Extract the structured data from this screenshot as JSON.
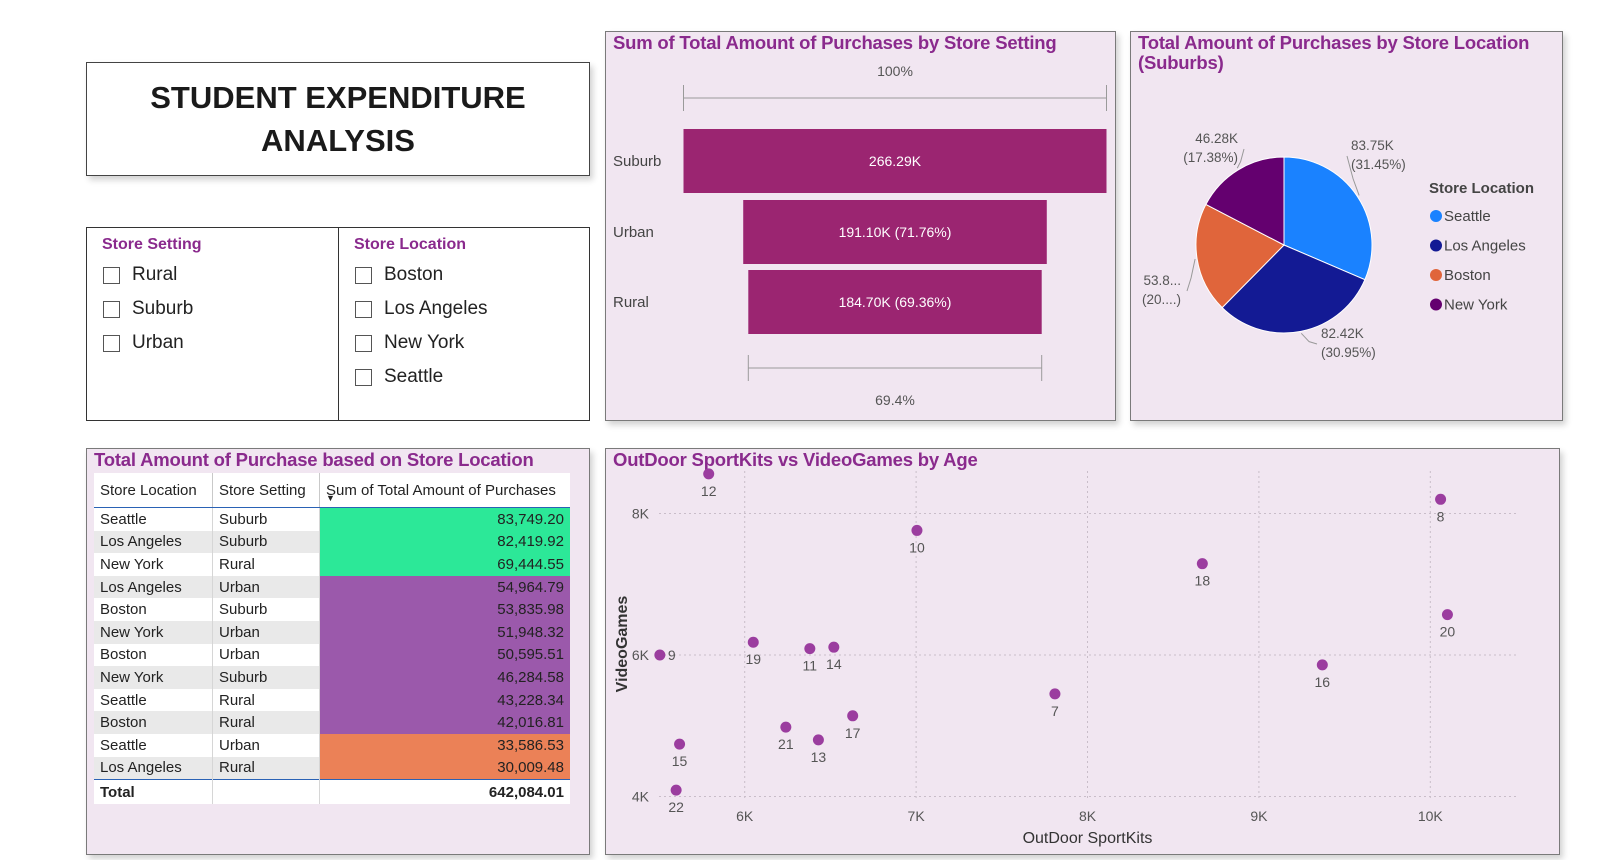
{
  "dashboard_title": "STUDENT EXPENDITURE ANALYSIS",
  "slicers": {
    "store_setting": {
      "title": "Store Setting",
      "options": [
        "Rural",
        "Suburb",
        "Urban"
      ]
    },
    "store_location": {
      "title": "Store Location",
      "options": [
        "Boston",
        "Los Angeles",
        "New York",
        "Seattle"
      ]
    }
  },
  "chart_data": [
    {
      "type": "funnel",
      "title": "Sum of Total Amount of Purchases by Store Setting",
      "categories": [
        "Suburb",
        "Urban",
        "Rural"
      ],
      "values": [
        266290,
        191100,
        184700
      ],
      "value_labels": [
        "266.29K",
        "191.10K (71.76%)",
        "184.70K (69.36%)"
      ],
      "top_percent": "100%",
      "bottom_percent": "69.4%",
      "bar_color": "#9b2571"
    },
    {
      "type": "pie",
      "title": "Total Amount of Purchases by Store Location (Suburbs)",
      "legend_title": "Store Location",
      "legend_placement": "right",
      "slices": [
        {
          "name": "Seattle",
          "value": 83750,
          "label": "83.75K",
          "pct": "(31.45%)",
          "color": "#1a82ff"
        },
        {
          "name": "Los Angeles",
          "value": 82420,
          "label": "82.42K",
          "pct": "(30.95%)",
          "color": "#131a94"
        },
        {
          "name": "Boston",
          "value": 53840,
          "label": "53.8...",
          "pct": "(20....)",
          "color": "#e0653b"
        },
        {
          "name": "New York",
          "value": 46280,
          "label": "46.28K",
          "pct": "(17.38%)",
          "color": "#64006f"
        }
      ]
    },
    {
      "type": "table",
      "title": "Total Amount of Purchase based on Store Location",
      "columns": [
        "Store Location",
        "Store Setting",
        "Sum of Total Amount of Purchases"
      ],
      "sort_indicator": "▼",
      "rows": [
        {
          "location": "Seattle",
          "setting": "Suburb",
          "amount": "83,749.20",
          "color": "#2ce898"
        },
        {
          "location": "Los Angeles",
          "setting": "Suburb",
          "amount": "82,419.92",
          "color": "#2ce898"
        },
        {
          "location": "New York",
          "setting": "Rural",
          "amount": "69,444.55",
          "color": "#2ce898"
        },
        {
          "location": "Los Angeles",
          "setting": "Urban",
          "amount": "54,964.79",
          "color": "#9b59ab"
        },
        {
          "location": "Boston",
          "setting": "Suburb",
          "amount": "53,835.98",
          "color": "#9b59ab"
        },
        {
          "location": "New York",
          "setting": "Urban",
          "amount": "51,948.32",
          "color": "#9b59ab"
        },
        {
          "location": "Boston",
          "setting": "Urban",
          "amount": "50,595.51",
          "color": "#9b59ab"
        },
        {
          "location": "New York",
          "setting": "Suburb",
          "amount": "46,284.58",
          "color": "#9b59ab"
        },
        {
          "location": "Seattle",
          "setting": "Rural",
          "amount": "43,228.34",
          "color": "#9b59ab"
        },
        {
          "location": "Boston",
          "setting": "Rural",
          "amount": "42,016.81",
          "color": "#9b59ab"
        },
        {
          "location": "Seattle",
          "setting": "Urban",
          "amount": "33,586.53",
          "color": "#eb8157"
        },
        {
          "location": "Los Angeles",
          "setting": "Rural",
          "amount": "30,009.48",
          "color": "#eb8157"
        }
      ],
      "total_label": "Total",
      "total_value": "642,084.01"
    },
    {
      "type": "scatter",
      "title": "OutDoor SportKits vs VideoGames by Age",
      "xlabel": "OutDoor SportKits",
      "ylabel": "VideoGames",
      "xlim": [
        5500,
        10500
      ],
      "ylim": [
        3950,
        8600
      ],
      "xticks": [
        6000,
        7000,
        8000,
        9000,
        10000
      ],
      "xtick_labels": [
        "6K",
        "7K",
        "8K",
        "9K",
        "10K"
      ],
      "yticks": [
        4000,
        6000,
        8000
      ],
      "ytick_labels": [
        "4K",
        "6K",
        "8K"
      ],
      "grid": true,
      "point_color": "#9b3d9f",
      "points": [
        {
          "label": "12",
          "x": 5790,
          "y": 8560
        },
        {
          "label": "10",
          "x": 7005,
          "y": 7760
        },
        {
          "label": "8",
          "x": 10060,
          "y": 8200
        },
        {
          "label": "18",
          "x": 8670,
          "y": 7290
        },
        {
          "label": "20",
          "x": 10100,
          "y": 6570
        },
        {
          "label": "9",
          "x": 5505,
          "y": 6000
        },
        {
          "label": "19",
          "x": 6050,
          "y": 6180
        },
        {
          "label": "11",
          "x": 6380,
          "y": 6090
        },
        {
          "label": "14",
          "x": 6520,
          "y": 6110
        },
        {
          "label": "16",
          "x": 9370,
          "y": 5860
        },
        {
          "label": "7",
          "x": 7810,
          "y": 5450
        },
        {
          "label": "17",
          "x": 6630,
          "y": 5140
        },
        {
          "label": "21",
          "x": 6240,
          "y": 4980
        },
        {
          "label": "13",
          "x": 6430,
          "y": 4800
        },
        {
          "label": "15",
          "x": 5620,
          "y": 4740
        },
        {
          "label": "22",
          "x": 5600,
          "y": 4090
        }
      ]
    }
  ]
}
